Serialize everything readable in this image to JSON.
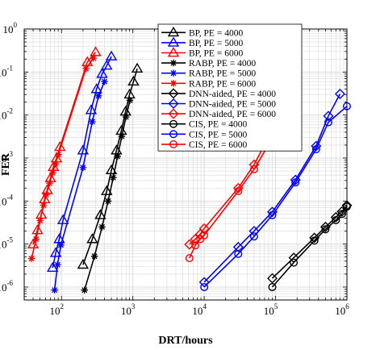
{
  "chart_data": {
    "type": "line",
    "title": "",
    "xlabel": "DRT/hours",
    "ylabel": "FER",
    "xscale": "log",
    "yscale": "log",
    "xlim": [
      30,
      1000000
    ],
    "ylim": [
      5e-07,
      1
    ],
    "x_ticks": [
      {
        "base": "10",
        "exp": "2"
      },
      {
        "base": "10",
        "exp": "3"
      },
      {
        "base": "10",
        "exp": "4"
      },
      {
        "base": "10",
        "exp": "5"
      },
      {
        "base": "10",
        "exp": "6"
      }
    ],
    "y_ticks": [
      {
        "base": "10",
        "exp": "-6"
      },
      {
        "base": "10",
        "exp": "-5"
      },
      {
        "base": "10",
        "exp": "-4"
      },
      {
        "base": "10",
        "exp": "-3"
      },
      {
        "base": "10",
        "exp": "-2"
      },
      {
        "base": "10",
        "exp": "-1"
      },
      {
        "base": "10",
        "exp": "0"
      }
    ],
    "grid": true,
    "legend_position": "top-right",
    "colors": {
      "pe4000": "#000000",
      "pe5000": "#0000ff",
      "pe6000": "#ff0000",
      "grid": "#d9d9d9"
    },
    "series": [
      {
        "name": "BP, PE = 4000",
        "marker": "triangle",
        "color": "#000000",
        "x": [
          200,
          270,
          350,
          430,
          500,
          590,
          690,
          790,
          900,
          1020,
          1150
        ],
        "y": [
          3.3e-06,
          1.3e-05,
          4.7e-05,
          0.00017,
          0.00052,
          0.0015,
          0.0043,
          0.012,
          0.03,
          0.06,
          0.12
        ]
      },
      {
        "name": "BP, PE = 5000",
        "marker": "triangle",
        "color": "#0000ff",
        "x": [
          75,
          83,
          93,
          105,
          200,
          260,
          310,
          370,
          430,
          500
        ],
        "y": [
          2.8e-06,
          6.2e-06,
          1.3e-05,
          3.6e-05,
          0.0015,
          0.013,
          0.04,
          0.09,
          0.14,
          0.23
        ]
      },
      {
        "name": "BP, PE = 6000",
        "marker": "triangle",
        "color": "#ff0000",
        "x": [
          40,
          46,
          52,
          58,
          63,
          70,
          77,
          85,
          95,
          230,
          300
        ],
        "y": [
          9.8e-06,
          2.1e-05,
          4.8e-05,
          0.00011,
          0.00018,
          0.00034,
          0.00062,
          0.00098,
          0.0018,
          0.17,
          0.29
        ]
      },
      {
        "name": "RABP, PE = 4000",
        "marker": "star",
        "color": "#000000",
        "x": [
          210,
          290,
          370,
          450,
          530,
          610,
          700,
          800,
          910
        ],
        "y": [
          8.5e-07,
          5.2e-06,
          2.5e-05,
          0.0001,
          0.00035,
          0.0011,
          0.0032,
          0.009,
          0.022
        ]
      },
      {
        "name": "RABP, PE = 5000",
        "marker": "star",
        "color": "#0000ff",
        "x": [
          80,
          88,
          98,
          200,
          270,
          330,
          400
        ],
        "y": [
          8.5e-07,
          3.3e-06,
          9.5e-06,
          0.0006,
          0.007,
          0.028,
          0.06
        ]
      },
      {
        "name": "RABP, PE = 6000",
        "marker": "star",
        "color": "#ff0000",
        "x": [
          38,
          44,
          50,
          56,
          61,
          68,
          75,
          82,
          90,
          220,
          280
        ],
        "y": [
          4.6e-06,
          1.3e-05,
          3.5e-05,
          8e-05,
          0.00014,
          0.00026,
          0.00045,
          0.00073,
          0.0012,
          0.12,
          0.21
        ]
      },
      {
        "name": "DNN-aided, PE = 4000",
        "marker": "diamond",
        "color": "#000000",
        "x": [
          90000,
          180000,
          350000,
          500000,
          700000,
          850000,
          1000000
        ],
        "y": [
          1.6e-06,
          4.8e-06,
          1.4e-05,
          2.5e-05,
          4.2e-05,
          5.7e-05,
          7.9e-05
        ]
      },
      {
        "name": "DNN-aided, PE = 5000",
        "marker": "diamond",
        "color": "#0000ff",
        "x": [
          10000,
          30000,
          50000,
          90000,
          190000,
          370000,
          550000,
          800000
        ],
        "y": [
          1.3e-06,
          8.5e-06,
          2e-05,
          5.6e-05,
          0.00031,
          0.0019,
          0.0095,
          0.031
        ]
      },
      {
        "name": "DNN-aided, PE = 6000",
        "marker": "diamond",
        "color": "#ff0000",
        "x": [
          6200,
          7500,
          8800,
          10000,
          30000,
          50000,
          200000
        ],
        "y": [
          9.8e-06,
          1.3e-05,
          1.7e-05,
          2.3e-05,
          0.0002,
          0.0007,
          0.055
        ]
      },
      {
        "name": "CIS, PE = 4000",
        "marker": "circle",
        "color": "#000000",
        "x": [
          90000,
          180000,
          350000,
          500000,
          700000,
          850000,
          1000000
        ],
        "y": [
          1e-06,
          3.7e-06,
          1.2e-05,
          2.2e-05,
          3.6e-05,
          5e-05,
          7.4e-05
        ]
      },
      {
        "name": "CIS, PE = 5000",
        "marker": "circle",
        "color": "#0000ff",
        "x": [
          10000,
          30000,
          50000,
          90000,
          190000,
          370000,
          550000,
          1000000
        ],
        "y": [
          1e-06,
          5.9e-06,
          1.5e-05,
          4.7e-05,
          0.00027,
          0.0016,
          0.0068,
          0.016
        ]
      },
      {
        "name": "CIS, PE = 6000",
        "marker": "circle",
        "color": "#ff0000",
        "x": [
          6200,
          7500,
          8800,
          10000,
          30000,
          50000,
          200000
        ],
        "y": [
          4.7e-06,
          9.3e-06,
          1.3e-05,
          1.6e-05,
          0.00017,
          0.00055,
          0.027
        ]
      }
    ]
  }
}
